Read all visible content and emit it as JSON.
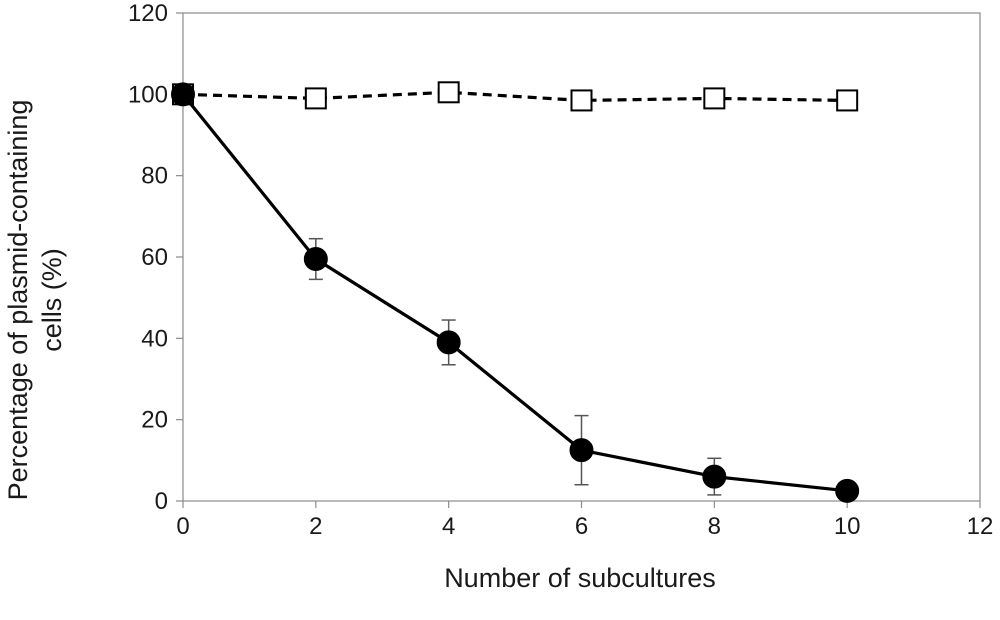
{
  "chart_data": {
    "type": "line",
    "title": "",
    "xlabel": "Number of subcultures",
    "ylabel_lines": [
      "Percentage of plasmid-containing",
      "cells (%)"
    ],
    "xlim": [
      0,
      12
    ],
    "ylim": [
      0,
      120
    ],
    "xticks": [
      0,
      2,
      4,
      6,
      8,
      10,
      12
    ],
    "yticks": [
      0,
      20,
      40,
      60,
      80,
      100,
      120
    ],
    "grid": false,
    "legend": "none",
    "series": [
      {
        "marker": "open-square",
        "line_style": "dashed",
        "color": "#000000",
        "x": [
          0,
          2,
          4,
          6,
          8,
          10
        ],
        "y": [
          100,
          99,
          100.5,
          98.5,
          99,
          98.5
        ],
        "error": [
          0,
          0,
          0,
          0,
          0,
          0
        ]
      },
      {
        "marker": "filled-circle",
        "line_style": "solid",
        "color": "#000000",
        "x": [
          0,
          2,
          4,
          6,
          8,
          10
        ],
        "y": [
          100,
          59.5,
          39,
          12.5,
          6,
          2.5
        ],
        "error": [
          0,
          5,
          5.5,
          8.5,
          4.5,
          0
        ]
      }
    ]
  }
}
